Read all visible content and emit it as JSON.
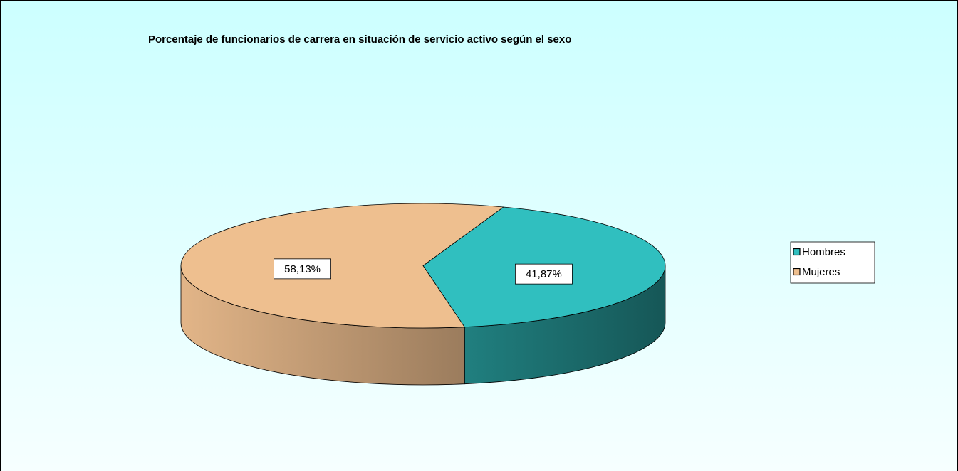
{
  "chart_data": {
    "type": "pie",
    "title": "Porcentaje de funcionarios de carrera en situación de servicio activo según el sexo",
    "categories": [
      "Hombres",
      "Mujeres"
    ],
    "values": [
      41.87,
      58.13
    ],
    "value_labels": [
      "41,87%",
      "58,13%"
    ],
    "colors": [
      "#30bfbf",
      "#eebf8f"
    ],
    "legend": "right",
    "three_d": true
  }
}
